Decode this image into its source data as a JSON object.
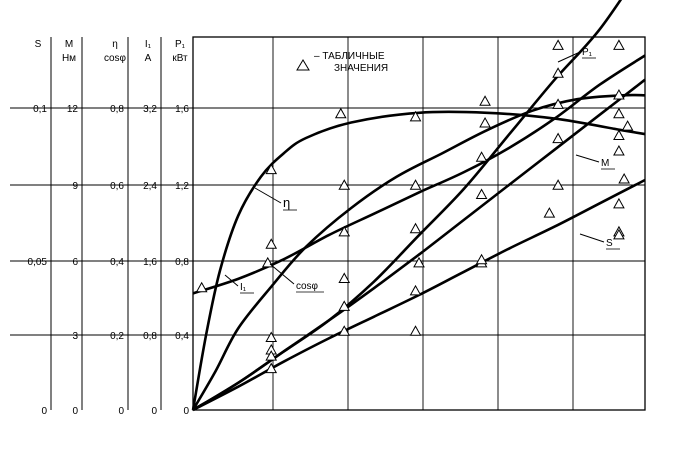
{
  "chart_data": {
    "type": "line",
    "legend": {
      "marker": "△",
      "text_line1": "– ТАБЛИЧНЫЕ",
      "text_line2": "ЗНАЧЕНИЯ",
      "placement": "top-center"
    },
    "x_axis": {
      "quantity": "P₁",
      "unit": "кВт",
      "range": [
        0,
        2.0
      ],
      "grid_step": 0.2
    },
    "y_axes": [
      {
        "id": "S",
        "label": "S",
        "unit": "",
        "range": [
          0,
          0.12
        ],
        "ticks": [
          "0",
          "0,05",
          "0,1"
        ],
        "tick_values": [
          0,
          0.05,
          0.1
        ]
      },
      {
        "id": "M",
        "label": "M",
        "unit": "Нм",
        "range": [
          0,
          14.4
        ],
        "ticks": [
          "0",
          "3",
          "6",
          "9",
          "12"
        ],
        "tick_values": [
          0,
          3,
          6,
          9,
          12
        ]
      },
      {
        "id": "eta",
        "label": "η",
        "unit": "cosφ",
        "range": [
          0,
          0.96
        ],
        "ticks": [
          "0",
          "0,2",
          "0,4",
          "0,6",
          "0,8"
        ],
        "tick_values": [
          0,
          0.2,
          0.4,
          0.6,
          0.8
        ]
      },
      {
        "id": "I1",
        "label": "I₁",
        "unit": "A",
        "range": [
          0,
          3.84
        ],
        "ticks": [
          "0",
          "0,8",
          "1,6",
          "2,4",
          "3,2"
        ],
        "tick_values": [
          0,
          0.8,
          1.6,
          2.4,
          3.2
        ]
      },
      {
        "id": "P1",
        "label": "P₁",
        "unit": "кВт",
        "range": [
          0,
          1.92
        ],
        "ticks": [
          "0",
          "0,4",
          "0,8",
          "1,2",
          "1,6"
        ],
        "tick_values": [
          0,
          0.4,
          0.8,
          1.2,
          1.6
        ]
      }
    ],
    "ylim_normalized": [
      0,
      1.2
    ],
    "series": [
      {
        "name": "η",
        "axis": "eta",
        "x": [
          0,
          0.06,
          0.12,
          0.2,
          0.3,
          0.4,
          0.5,
          0.7,
          1.0,
          1.3,
          1.6,
          1.9,
          2.0
        ],
        "values": [
          0,
          0.2,
          0.36,
          0.5,
          0.6,
          0.66,
          0.7,
          0.74,
          0.765,
          0.765,
          0.75,
          0.72,
          0.71
        ]
      },
      {
        "name": "cosφ",
        "axis": "eta",
        "x": [
          0,
          0.1,
          0.2,
          0.35,
          0.5,
          0.7,
          0.9,
          1.1,
          1.3,
          1.5,
          1.7,
          1.9,
          2.0
        ],
        "values": [
          0,
          0.1,
          0.21,
          0.32,
          0.42,
          0.52,
          0.6,
          0.66,
          0.72,
          0.77,
          0.8,
          0.81,
          0.81
        ]
      },
      {
        "name": "I₁",
        "axis": "I1",
        "x": [
          0,
          0.2,
          0.4,
          0.6,
          0.8,
          1.0,
          1.2,
          1.4,
          1.6,
          1.8,
          2.0
        ],
        "values": [
          1.2,
          1.35,
          1.55,
          1.8,
          2.02,
          2.24,
          2.45,
          2.7,
          3.0,
          3.35,
          3.65
        ]
      },
      {
        "name": "P₁",
        "axis": "P1",
        "x": [
          0,
          0.2,
          0.4,
          0.6,
          0.8,
          1.0,
          1.2,
          1.4,
          1.6,
          1.8,
          2.0
        ],
        "values": [
          0,
          0.14,
          0.3,
          0.46,
          0.66,
          0.9,
          1.14,
          1.42,
          1.7,
          1.96,
          2.3
        ]
      },
      {
        "name": "M",
        "axis": "M",
        "x": [
          0,
          0.2,
          0.4,
          0.6,
          0.8,
          1.0,
          1.2,
          1.4,
          1.6,
          1.8,
          2.0
        ],
        "values": [
          0,
          1.05,
          2.25,
          3.45,
          4.7,
          6.0,
          7.35,
          8.7,
          10.05,
          11.4,
          12.75
        ]
      },
      {
        "name": "S",
        "axis": "S",
        "x": [
          0,
          0.2,
          0.4,
          0.6,
          0.8,
          1.0,
          1.2,
          1.4,
          1.6,
          1.8,
          2.0
        ],
        "values": [
          0,
          0.0075,
          0.0155,
          0.023,
          0.03,
          0.037,
          0.0445,
          0.052,
          0.059,
          0.0665,
          0.074
        ]
      }
    ],
    "table_points": [
      {
        "x": 0.05,
        "y_norm": 0.39
      },
      {
        "x": 0.45,
        "y_norm": 0.53
      },
      {
        "x": 0.43,
        "y_norm": 0.47
      },
      {
        "x": 0.45,
        "y_norm": 0.23
      },
      {
        "x": 0.45,
        "y_norm": 0.19
      },
      {
        "x": 0.45,
        "y_norm": 0.17
      },
      {
        "x": 0.45,
        "y_norm": 0.13
      },
      {
        "x": 0.45,
        "y_norm": 0.77
      },
      {
        "x": 0.85,
        "y_norm": 0.95
      },
      {
        "x": 0.87,
        "y_norm": 0.72
      },
      {
        "x": 0.87,
        "y_norm": 0.57
      },
      {
        "x": 0.87,
        "y_norm": 0.42
      },
      {
        "x": 0.87,
        "y_norm": 0.33
      },
      {
        "x": 0.87,
        "y_norm": 0.25
      },
      {
        "x": 1.28,
        "y_norm": 0.94
      },
      {
        "x": 1.28,
        "y_norm": 0.72
      },
      {
        "x": 1.28,
        "y_norm": 0.58
      },
      {
        "x": 1.3,
        "y_norm": 0.47
      },
      {
        "x": 1.28,
        "y_norm": 0.38
      },
      {
        "x": 1.28,
        "y_norm": 0.25
      },
      {
        "x": 1.68,
        "y_norm": 0.99
      },
      {
        "x": 1.68,
        "y_norm": 0.92
      },
      {
        "x": 1.66,
        "y_norm": 0.81
      },
      {
        "x": 1.66,
        "y_norm": 0.69
      },
      {
        "x": 1.66,
        "y_norm": 0.47
      },
      {
        "x": 1.66,
        "y_norm": 0.48
      },
      {
        "x": 2.1,
        "y_norm": 1.17
      },
      {
        "x": 2.1,
        "y_norm": 1.08
      },
      {
        "x": 2.1,
        "y_norm": 0.98
      },
      {
        "x": 2.1,
        "y_norm": 0.87
      },
      {
        "x": 2.1,
        "y_norm": 0.72
      },
      {
        "x": 2.05,
        "y_norm": 0.63
      },
      {
        "x": 2.45,
        "y_norm": 1.17
      },
      {
        "x": 2.45,
        "y_norm": 1.01
      },
      {
        "x": 2.45,
        "y_norm": 0.83
      },
      {
        "x": 2.45,
        "y_norm": 0.57
      },
      {
        "x": 2.45,
        "y_norm": 0.56
      },
      {
        "x": 2.5,
        "y_norm": 0.91
      },
      {
        "x": 2.48,
        "y_norm": 0.74
      },
      {
        "x": 2.45,
        "y_norm": 0.66
      },
      {
        "x": 2.45,
        "y_norm": 0.88
      },
      {
        "x": 2.45,
        "y_norm": 0.95
      }
    ],
    "curve_labels": [
      "η",
      "cosφ",
      "I₁",
      "M",
      "S",
      "P₁"
    ]
  }
}
